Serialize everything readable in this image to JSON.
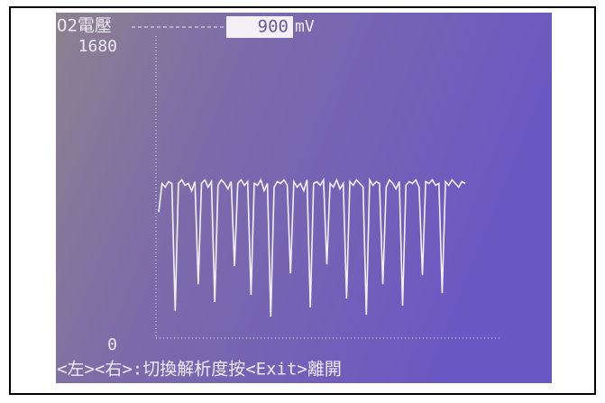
{
  "chart_data": {
    "type": "line",
    "title": "O2電壓",
    "readout": {
      "value": 900,
      "unit": "mV"
    },
    "ylim": [
      0,
      1680
    ],
    "yticks": [
      0,
      1680
    ],
    "color": "#f4f0ff",
    "values": [
      700,
      860,
      840,
      870,
      860,
      150,
      860,
      880,
      850,
      860,
      820,
      870,
      300,
      860,
      880,
      840,
      870,
      200,
      850,
      880,
      860,
      830,
      870,
      400,
      860,
      880,
      850,
      870,
      240,
      860,
      850,
      880,
      820,
      860,
      120,
      840,
      870,
      860,
      880,
      850,
      360,
      870,
      840,
      860,
      820,
      880,
      170,
      860,
      870,
      850,
      880,
      410,
      860,
      840,
      880,
      830,
      860,
      220,
      870,
      850,
      880,
      860,
      840,
      130,
      880,
      850,
      870,
      860,
      300,
      840,
      880,
      860,
      830,
      870,
      180,
      850,
      870,
      860,
      880,
      840,
      350,
      870,
      860,
      880,
      850,
      860,
      250,
      870,
      850,
      880,
      860,
      840,
      870,
      860
    ],
    "footer": "<左><右>:切換解析度按<Exit>離開"
  }
}
